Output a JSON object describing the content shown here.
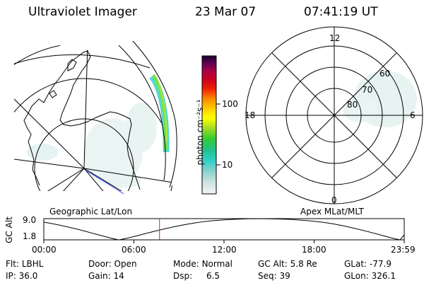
{
  "header": {
    "instrument": "Ultraviolet Imager",
    "date": "23 Mar 07",
    "time": "07:41:19 UT"
  },
  "geo_panel": {
    "label": "Geographic Lat/Lon"
  },
  "colorbar": {
    "unit_label": "photon cm⁻²s⁻¹",
    "ticks": [
      "100",
      "10"
    ]
  },
  "polar_panel": {
    "label": "Apex MLat/MLT",
    "mlt_labels": [
      "12",
      "18",
      "6",
      "0"
    ],
    "lat_labels": [
      "60",
      "70",
      "80"
    ]
  },
  "altitude_strip": {
    "axis_label": "GC Alt",
    "y_ticks": [
      "9.0",
      "1.8"
    ],
    "time_ticks": [
      "00:00",
      "06:00",
      "12:00",
      "18:00",
      "23:59"
    ],
    "current_time_fraction": 0.321
  },
  "status": {
    "row1": [
      {
        "label": "Flt:",
        "value": "LBHL"
      },
      {
        "label": "Door:",
        "value": "Open"
      },
      {
        "label": "Mode:",
        "value": "Normal"
      },
      {
        "label": "GC Alt:",
        "value": "5.8 Re"
      },
      {
        "label": "GLat:",
        "value": "-77.9"
      }
    ],
    "row2": [
      {
        "label": "IP:",
        "value": "36.0"
      },
      {
        "label": "Gain:",
        "value": "14"
      },
      {
        "label": "Dsp:",
        "value": "6.5"
      },
      {
        "label": "Seq:",
        "value": "39"
      },
      {
        "label": "GLon:",
        "value": "326.1"
      }
    ]
  }
}
